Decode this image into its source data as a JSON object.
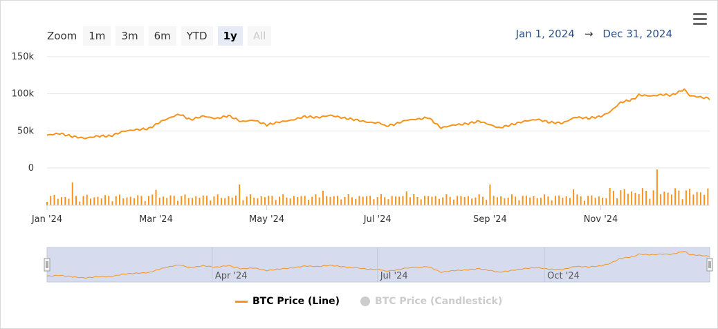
{
  "zoom": {
    "label": "Zoom",
    "buttons": [
      {
        "label": "1m",
        "state": "normal"
      },
      {
        "label": "3m",
        "state": "normal"
      },
      {
        "label": "6m",
        "state": "normal"
      },
      {
        "label": "YTD",
        "state": "normal"
      },
      {
        "label": "1y",
        "state": "active"
      },
      {
        "label": "All",
        "state": "disabled"
      }
    ]
  },
  "range": {
    "from": "Jan 1, 2024",
    "arrow": "→",
    "to": "Dec 31, 2024"
  },
  "menu_icon": "hamburger-menu-icon",
  "colors": {
    "line": "#f7931a",
    "volume": "#f7931a",
    "navigator_fill": "#d6dcee",
    "disabled": "#cccccc",
    "range_text": "#2b4f8c"
  },
  "chart_data": {
    "type": "line",
    "x_ticks": [
      "Jan '24",
      "Mar '24",
      "May '24",
      "Jul '24",
      "Sep '24",
      "Nov '24"
    ],
    "y_ticks": [
      "150k",
      "100k",
      "50k",
      "0"
    ],
    "ylim": [
      0,
      150000
    ],
    "navigator_ticks": [
      "Apr '24",
      "Jul '24",
      "Oct '24"
    ],
    "series": [
      {
        "name": "BTC Price (Line)",
        "visible": true,
        "points": [
          [
            "2024-01-01",
            44200
          ],
          [
            "2024-01-08",
            46500
          ],
          [
            "2024-01-15",
            42500
          ],
          [
            "2024-01-22",
            40000
          ],
          [
            "2024-01-29",
            43000
          ],
          [
            "2024-02-05",
            43000
          ],
          [
            "2024-02-12",
            49500
          ],
          [
            "2024-02-19",
            51500
          ],
          [
            "2024-02-26",
            53000
          ],
          [
            "2024-03-04",
            63000
          ],
          [
            "2024-03-11",
            70000
          ],
          [
            "2024-03-14",
            72500
          ],
          [
            "2024-03-20",
            65000
          ],
          [
            "2024-03-27",
            70000
          ],
          [
            "2024-04-03",
            66500
          ],
          [
            "2024-04-10",
            70500
          ],
          [
            "2024-04-17",
            62500
          ],
          [
            "2024-04-24",
            64500
          ],
          [
            "2024-05-01",
            58000
          ],
          [
            "2024-05-08",
            62000
          ],
          [
            "2024-05-15",
            64500
          ],
          [
            "2024-05-22",
            69500
          ],
          [
            "2024-05-29",
            68000
          ],
          [
            "2024-06-05",
            71000
          ],
          [
            "2024-06-12",
            67500
          ],
          [
            "2024-06-19",
            65000
          ],
          [
            "2024-06-26",
            61500
          ],
          [
            "2024-07-03",
            60500
          ],
          [
            "2024-07-05",
            56500
          ],
          [
            "2024-07-10",
            58500
          ],
          [
            "2024-07-17",
            64500
          ],
          [
            "2024-07-24",
            66000
          ],
          [
            "2024-07-29",
            68000
          ],
          [
            "2024-08-05",
            54000
          ],
          [
            "2024-08-12",
            58000
          ],
          [
            "2024-08-19",
            59500
          ],
          [
            "2024-08-26",
            63000
          ],
          [
            "2024-09-02",
            57500
          ],
          [
            "2024-09-06",
            54000
          ],
          [
            "2024-09-13",
            58500
          ],
          [
            "2024-09-20",
            63000
          ],
          [
            "2024-09-27",
            65500
          ],
          [
            "2024-10-04",
            61500
          ],
          [
            "2024-10-11",
            60500
          ],
          [
            "2024-10-18",
            68500
          ],
          [
            "2024-10-25",
            67000
          ],
          [
            "2024-11-01",
            69500
          ],
          [
            "2024-11-06",
            75500
          ],
          [
            "2024-11-12",
            88500
          ],
          [
            "2024-11-19",
            92500
          ],
          [
            "2024-11-22",
            98500
          ],
          [
            "2024-11-29",
            97000
          ],
          [
            "2024-12-05",
            99000
          ],
          [
            "2024-12-10",
            98000
          ],
          [
            "2024-12-17",
            106000
          ],
          [
            "2024-12-20",
            97500
          ],
          [
            "2024-12-26",
            95500
          ],
          [
            "2024-12-31",
            93500
          ]
        ]
      },
      {
        "name": "BTC Price (Candlestick)",
        "visible": false
      }
    ]
  }
}
